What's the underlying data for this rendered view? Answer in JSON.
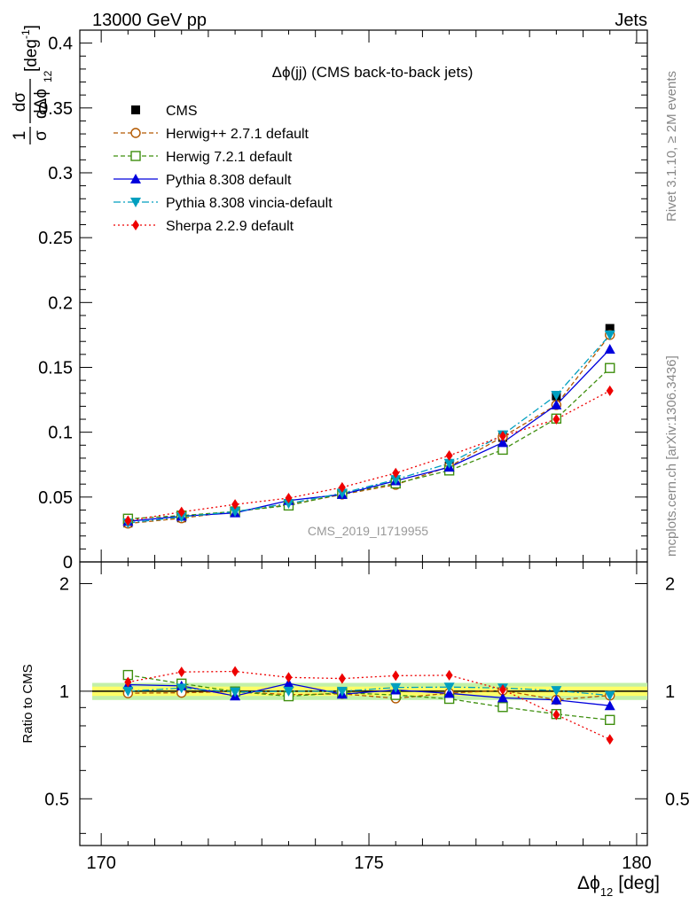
{
  "header": {
    "energy_label": "13000 GeV pp",
    "process_label": "Jets"
  },
  "side_labels": {
    "rivet": "Rivet 3.1.10, ≥ 2M events",
    "mcplots": "mcplots.cern.ch [arXiv:1306.3436]"
  },
  "watermark": "CMS_2019_I1719955",
  "chart_data": {
    "type": "line",
    "title": "Δϕ(jj) (CMS back-to-back jets)",
    "xlabel": "Δϕ",
    "xlabel_sub": "12",
    "xlabel_unit": "[deg]",
    "ylabel_main": {
      "frac_num": "1",
      "frac_den": "σ",
      "d_num": "dσ",
      "d_den": "dΔϕ",
      "d_den_sub": "12",
      "unit_base": "[deg",
      "unit_exp": "-1",
      "unit_close": "]"
    },
    "ylabel_ratio": "Ratio to CMS",
    "xlim": [
      169.6,
      180.2
    ],
    "ylim_main": [
      0,
      0.41
    ],
    "ylim_ratio": [
      0.37,
      2.3
    ],
    "ratio_scale": "log",
    "xticks": [
      "170",
      "175",
      "180"
    ],
    "yticks_main": [
      "0",
      "0.05",
      "0.1",
      "0.15",
      "0.2",
      "0.25",
      "0.3",
      "0.35",
      "0.4"
    ],
    "yticks_ratio": [
      "0.5",
      "1",
      "2"
    ],
    "x": [
      170.5,
      171.5,
      172.5,
      173.5,
      174.5,
      175.5,
      176.5,
      177.5,
      178.5,
      179.5
    ],
    "series": [
      {
        "name": "CMS",
        "color": "#000000",
        "style": "none",
        "marker": "square-filled",
        "values": [
          0.03,
          0.034,
          0.039,
          0.045,
          0.053,
          0.062,
          0.074,
          0.096,
          0.128,
          0.18
        ]
      },
      {
        "name": "Herwig++ 2.7.1 default",
        "color": "#b35900",
        "style": "dashed",
        "marker": "circle-open",
        "values": [
          0.0296,
          0.0337,
          0.0389,
          0.044,
          0.052,
          0.0595,
          0.0735,
          0.0965,
          0.121,
          0.175
        ]
      },
      {
        "name": "Herwig 7.2.1 default",
        "color": "#3f8f0f",
        "style": "dashed",
        "marker": "square-open",
        "values": [
          0.0333,
          0.0357,
          0.0389,
          0.0435,
          0.0525,
          0.0605,
          0.0705,
          0.0865,
          0.1105,
          0.1495
        ]
      },
      {
        "name": "Pythia 8.308 default",
        "color": "#0000dd",
        "style": "solid",
        "marker": "triangle-up",
        "values": [
          0.0313,
          0.0352,
          0.0378,
          0.0473,
          0.052,
          0.0625,
          0.073,
          0.092,
          0.121,
          0.164
        ]
      },
      {
        "name": "Pythia 8.308 vincia-default",
        "color": "#009fbf",
        "style": "dashdot",
        "marker": "triangle-down",
        "values": [
          0.03,
          0.0347,
          0.0388,
          0.045,
          0.053,
          0.0635,
          0.076,
          0.098,
          0.1285,
          0.175
        ]
      },
      {
        "name": "Sherpa 2.2.9 default",
        "color": "#ee0000",
        "style": "dotted",
        "marker": "diamond",
        "values": [
          0.0318,
          0.0385,
          0.0443,
          0.0492,
          0.0575,
          0.0685,
          0.082,
          0.097,
          0.11,
          0.132
        ]
      }
    ],
    "ratio_series": [
      {
        "name": "Herwig++ 2.7.1 default",
        "values": [
          0.987,
          0.99,
          0.998,
          0.978,
          0.983,
          0.955,
          0.988,
          1.005,
          0.946,
          0.973
        ]
      },
      {
        "name": "Herwig 7.2.1 default",
        "values": [
          1.11,
          1.05,
          0.998,
          0.968,
          0.99,
          0.976,
          0.952,
          0.903,
          0.863,
          0.831
        ]
      },
      {
        "name": "Pythia 8.308 default",
        "values": [
          1.043,
          1.035,
          0.97,
          1.051,
          0.981,
          1.008,
          0.986,
          0.958,
          0.945,
          0.911
        ]
      },
      {
        "name": "Pythia 8.308 vincia-default",
        "values": [
          1.0,
          1.02,
          0.995,
          1.0,
          1.0,
          1.024,
          1.027,
          1.021,
          1.004,
          0.973
        ]
      },
      {
        "name": "Sherpa 2.2.9 default",
        "values": [
          1.06,
          1.132,
          1.136,
          1.093,
          1.085,
          1.105,
          1.108,
          1.01,
          0.859,
          0.733
        ]
      }
    ],
    "ratio_band": {
      "inner": [
        0.97,
        1.03
      ],
      "outer": [
        0.945,
        1.055
      ],
      "inner_color": "#ffff66",
      "outer_color": "#c2f0a8"
    },
    "legend_position": "top-left"
  }
}
